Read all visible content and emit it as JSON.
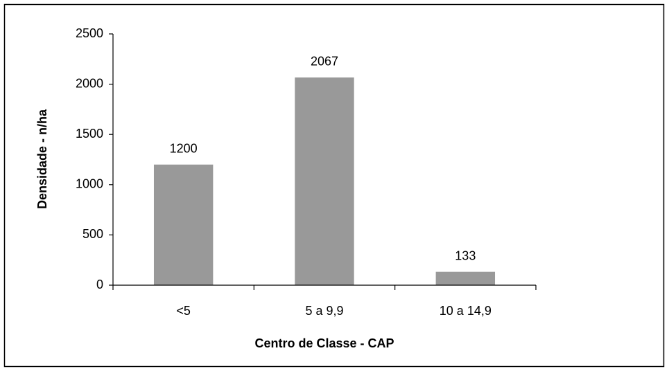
{
  "chart_data": {
    "type": "bar",
    "categories": [
      "<5",
      "5 a 9,9",
      "10 a 14,9"
    ],
    "values": [
      1200,
      2067,
      133
    ],
    "color": "#999999",
    "xlabel": "Centro de Classe - CAP",
    "ylabel": "Densidade - n/ha",
    "ylim": [
      0,
      2500
    ],
    "yticks": [
      0,
      500,
      1000,
      1500,
      2000,
      2500
    ],
    "grid": false
  }
}
